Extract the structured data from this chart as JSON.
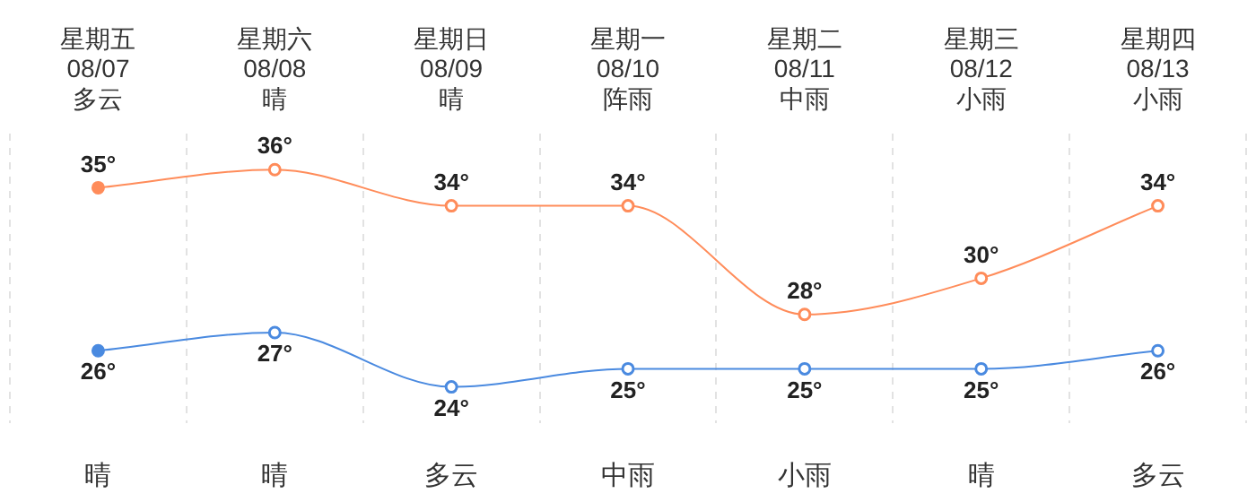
{
  "chart_data": {
    "type": "line",
    "categories": [
      "星期五\n08/07\n多云",
      "星期六\n08/08\n晴",
      "星期日\n08/09\n晴",
      "星期一\n08/10\n阵雨",
      "星期二\n08/11\n中雨",
      "星期三\n08/12\n小雨",
      "星期四\n08/13\n小雨"
    ],
    "series": [
      {
        "color": "#ff8c5a",
        "values": [
          35,
          36,
          34,
          34,
          28,
          30,
          34
        ],
        "value_labels": [
          "35°",
          "36°",
          "34°",
          "34°",
          "28°",
          "30°",
          "34°"
        ]
      },
      {
        "color": "#4a8ae0",
        "values": [
          26,
          27,
          24,
          25,
          25,
          25,
          26
        ],
        "value_labels": [
          "26°",
          "27°",
          "24°",
          "25°",
          "25°",
          "25°",
          "26°"
        ]
      }
    ],
    "grid": "x",
    "legend": false,
    "marker": "circle",
    "annotations": [
      "晴",
      "晴",
      "多云",
      "中雨",
      "小雨",
      "晴",
      "多云"
    ]
  }
}
